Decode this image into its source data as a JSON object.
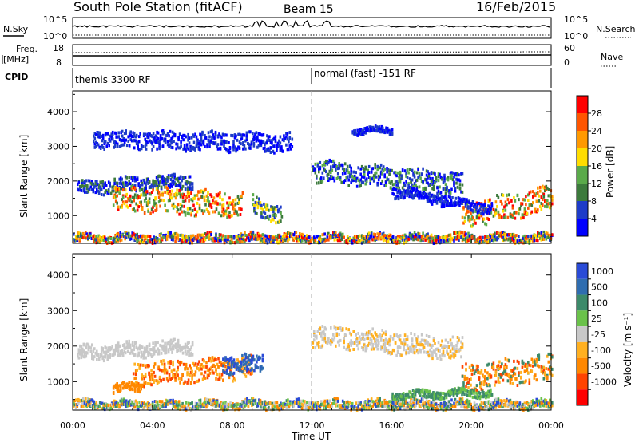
{
  "header": {
    "station": "South Pole Station (fitACF)",
    "beam": "Beam 15",
    "date": "16/Feb/2015"
  },
  "top_panels": {
    "nsky_label": "N.Sky",
    "nsky_ticks": [
      "10^5",
      "10^0"
    ],
    "nsearch_label": "N.Search",
    "nsearch_ticks": [
      "10^5",
      "10^0"
    ],
    "freq_label_1": "Freq.",
    "freq_label_2": "[MHz]",
    "freq_ticks": [
      "18",
      "8"
    ],
    "nave_label": "Nave",
    "nave_ticks": [
      "60",
      "0"
    ],
    "cpid_label": "CPID",
    "cpid_mode_1": "themis 3300 RF",
    "cpid_mode_2": "normal (fast) -151 RF"
  },
  "chart_data": [
    {
      "type": "heatmap",
      "name": "power",
      "ylabel": "Slant Range [km]",
      "ylim": [
        200,
        4600
      ],
      "yticks": [
        1000,
        2000,
        3000,
        4000
      ],
      "xlim": [
        0,
        24
      ],
      "colorbar_label": "Power [dB]",
      "colorbar_ticks": [
        "4",
        "8",
        "12",
        "16",
        "20",
        "24",
        "28"
      ],
      "colorbar_colors": [
        "#0000ff",
        "#1e3cc8",
        "#3c7a3c",
        "#5aaa4a",
        "#ffdd00",
        "#ff9900",
        "#ff5500",
        "#ff0000"
      ]
    },
    {
      "type": "heatmap",
      "name": "velocity",
      "ylabel": "Slant Range [km]",
      "ylim": [
        200,
        4600
      ],
      "yticks": [
        1000,
        2000,
        3000,
        4000
      ],
      "xlim": [
        0,
        24
      ],
      "xlabel": "Time UT",
      "xticks": [
        "00:00",
        "04:00",
        "08:00",
        "12:00",
        "16:00",
        "20:00",
        "00:00"
      ],
      "colorbar_label": "Velocity [m s⁻¹]",
      "colorbar_ticks": [
        "1000",
        "500",
        "100",
        "25",
        "-25",
        "-100",
        "-500",
        "-1000"
      ],
      "colorbar_colors": [
        "#2a4bd7",
        "#2f6db0",
        "#3c8a6a",
        "#6ac24a",
        "#c8c8c8",
        "#ffb020",
        "#ff8800",
        "#ff4400",
        "#ff0000"
      ]
    }
  ]
}
